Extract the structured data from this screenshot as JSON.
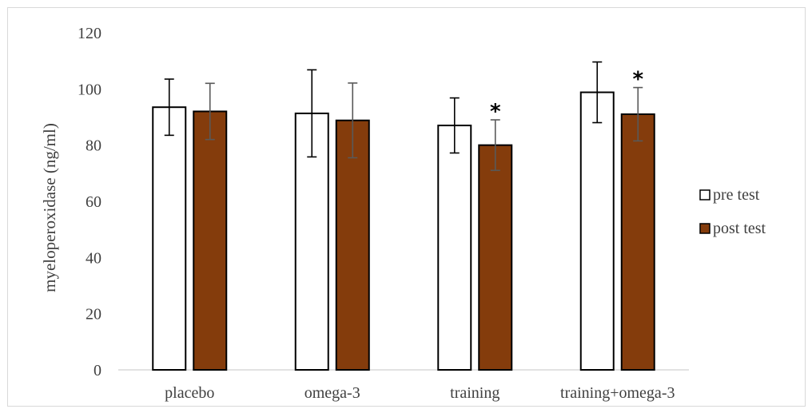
{
  "chart_data": {
    "type": "bar",
    "categories": [
      "placebo",
      "omega-3",
      "training",
      "training+omega-3"
    ],
    "series": [
      {
        "name": "pre test",
        "values": [
          93.5,
          91.3,
          87.0,
          98.8
        ],
        "errors": [
          10,
          15.5,
          9.8,
          10.8
        ],
        "significant": [
          false,
          false,
          false,
          false
        ],
        "fill": "#ffffff",
        "stroke": "#000000"
      },
      {
        "name": "post test",
        "values": [
          92.0,
          88.8,
          80.0,
          91.0
        ],
        "errors": [
          10,
          13.3,
          9.0,
          9.5
        ],
        "significant": [
          false,
          false,
          true,
          true
        ],
        "fill": "#843c0c",
        "stroke": "#000000"
      }
    ],
    "title": "",
    "xlabel": "",
    "ylabel": "myeloperoxidase (ng/ml)",
    "ylim": [
      0,
      120
    ],
    "yticks": [
      "0",
      "20",
      "40",
      "60",
      "80",
      "100",
      "120"
    ],
    "grid": false,
    "legend_position": "right",
    "significance_marker": "*"
  }
}
